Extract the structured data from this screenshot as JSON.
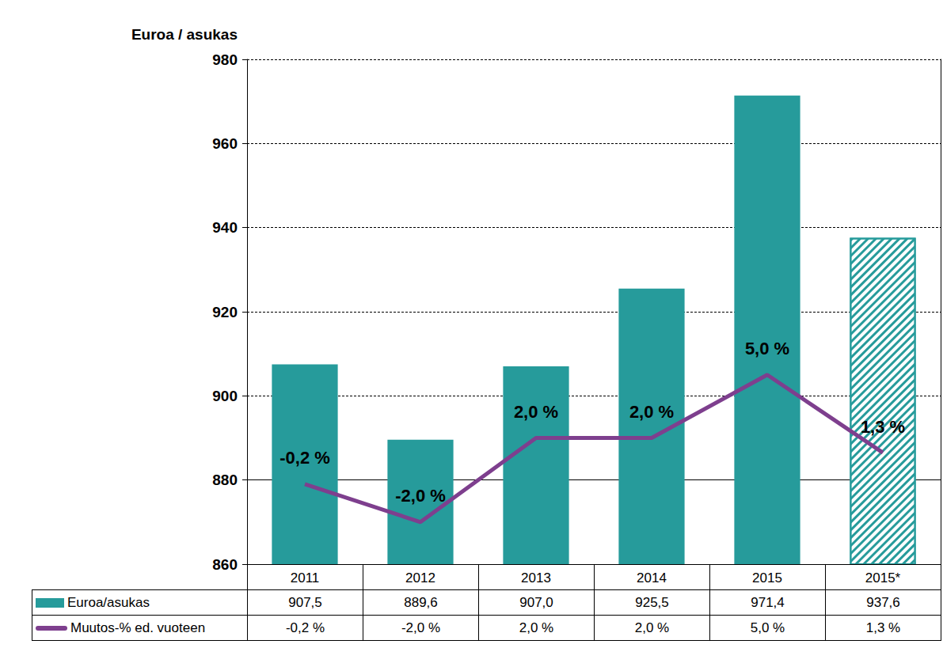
{
  "chart_data": {
    "type": "bar",
    "y_axis_label": "Euroa / asukas",
    "categories": [
      "2011",
      "2012",
      "2013",
      "2014",
      "2015",
      "2015*"
    ],
    "series": [
      {
        "name": "Euroa/asukas",
        "type": "bar",
        "color": "#269b9b",
        "values": [
          907.5,
          889.6,
          907.0,
          925.5,
          971.4,
          937.6
        ],
        "value_labels": [
          "907,5",
          "889,6",
          "907,0",
          "925,5",
          "971,4",
          "937,6"
        ]
      },
      {
        "name": "Muutos-% ed. vuoteen",
        "type": "line",
        "axis": "y2",
        "color": "#7e3f8e",
        "values": [
          -0.2,
          -2.0,
          2.0,
          2.0,
          5.0,
          1.3
        ],
        "value_labels": [
          "-0,2 %",
          "-2,0 %",
          "2,0 %",
          "2,0 %",
          "5,0 %",
          "1,3 %"
        ],
        "data_labels": true
      }
    ],
    "ylim": [
      860,
      980
    ],
    "yticks": [
      860,
      880,
      900,
      920,
      940,
      960,
      980
    ],
    "y2lim": [
      -4,
      20
    ],
    "grid": true,
    "legend": "bottom"
  }
}
